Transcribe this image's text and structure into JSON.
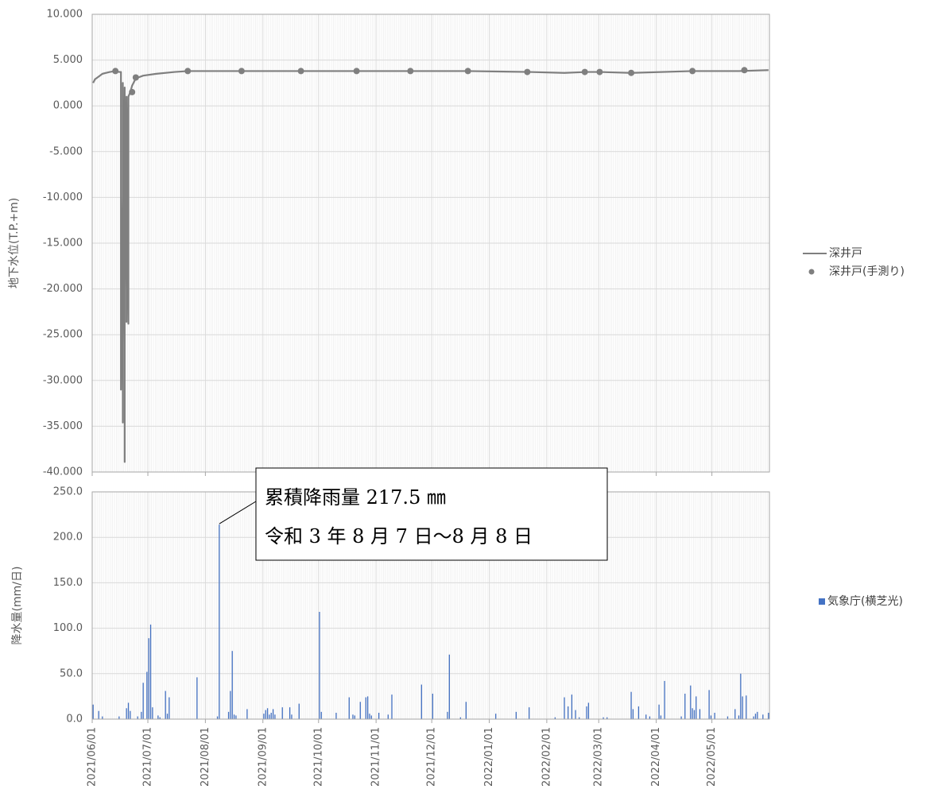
{
  "chart_data": [
    {
      "id": "groundwater",
      "type": "line",
      "ylabel": "地下水位(T.P.+m)",
      "ylim": [
        -40,
        10
      ],
      "yticks": [
        "10.000",
        "5.000",
        "0.000",
        "-5.000",
        "-10.000",
        "-15.000",
        "-20.000",
        "-25.000",
        "-30.000",
        "-35.000",
        "-40.000"
      ],
      "xlim": [
        "2021-06-01",
        "2022-05-31"
      ],
      "series": [
        {
          "name": "深井戸",
          "style": "line",
          "color": "#7f7f7f",
          "points": [
            [
              "2021-06-01",
              2.5
            ],
            [
              "2021-06-02",
              2.9
            ],
            [
              "2021-06-04",
              3.2
            ],
            [
              "2021-06-06",
              3.5
            ],
            [
              "2021-06-08",
              3.6
            ],
            [
              "2021-06-10",
              3.7
            ],
            [
              "2021-06-13",
              3.8
            ],
            [
              "2021-06-15",
              3.7
            ],
            [
              "2021-06-16",
              3.7
            ],
            [
              "2021-06-16",
              -4.0
            ],
            [
              "2021-06-16",
              -31.0
            ],
            [
              "2021-06-17",
              -10.0
            ],
            [
              "2021-06-17",
              -34.6
            ],
            [
              "2021-06-17",
              2.5
            ],
            [
              "2021-06-17",
              -26.0
            ],
            [
              "2021-06-18",
              2.0
            ],
            [
              "2021-06-18",
              -38.9
            ],
            [
              "2021-06-18",
              1.5
            ],
            [
              "2021-06-19",
              -20.0
            ],
            [
              "2021-06-19",
              1.0
            ],
            [
              "2021-06-19",
              -23.6
            ],
            [
              "2021-06-20",
              1.0
            ],
            [
              "2021-06-20",
              -23.8
            ],
            [
              "2021-06-20",
              1.0
            ],
            [
              "2021-06-21",
              1.5
            ],
            [
              "2021-06-22",
              2.2
            ],
            [
              "2021-06-24",
              3.0
            ],
            [
              "2021-06-28",
              3.3
            ],
            [
              "2021-07-05",
              3.5
            ],
            [
              "2021-07-15",
              3.7
            ],
            [
              "2021-07-22",
              3.8
            ],
            [
              "2021-08-15",
              3.8
            ],
            [
              "2021-09-20",
              3.8
            ],
            [
              "2021-10-20",
              3.8
            ],
            [
              "2021-11-20",
              3.8
            ],
            [
              "2021-12-20",
              3.8
            ],
            [
              "2022-01-22",
              3.7
            ],
            [
              "2022-02-10",
              3.6
            ],
            [
              "2022-02-22",
              3.7
            ],
            [
              "2022-03-01",
              3.7
            ],
            [
              "2022-03-18",
              3.6
            ],
            [
              "2022-04-20",
              3.8
            ],
            [
              "2022-05-15",
              3.8
            ],
            [
              "2022-05-31",
              3.9
            ]
          ]
        },
        {
          "name": "深井戸(手測り)",
          "style": "marker",
          "color": "#7f7f7f",
          "points": [
            [
              "2021-06-13",
              3.8
            ],
            [
              "2021-06-22",
              1.5
            ],
            [
              "2021-06-24",
              3.1
            ],
            [
              "2021-07-22",
              3.8
            ],
            [
              "2021-08-20",
              3.8
            ],
            [
              "2021-09-21",
              3.8
            ],
            [
              "2021-10-21",
              3.8
            ],
            [
              "2021-11-19",
              3.8
            ],
            [
              "2021-12-20",
              3.8
            ],
            [
              "2022-01-21",
              3.7
            ],
            [
              "2022-02-21",
              3.7
            ],
            [
              "2022-03-01",
              3.7
            ],
            [
              "2022-03-18",
              3.6
            ],
            [
              "2022-04-20",
              3.8
            ],
            [
              "2022-05-18",
              3.9
            ]
          ]
        }
      ]
    },
    {
      "id": "rainfall",
      "type": "bar",
      "ylabel": "降水量(mm/日)",
      "ylim": [
        0,
        250
      ],
      "yticks": [
        "250.0",
        "200.0",
        "150.0",
        "100.0",
        "50.0",
        "0.0"
      ],
      "xlim": [
        "2021-06-01",
        "2022-05-31"
      ],
      "xticks": [
        "2021/06/01",
        "2021/07/01",
        "2021/08/01",
        "2021/09/01",
        "2021/10/01",
        "2021/11/01",
        "2021/12/01",
        "2022/01/01",
        "2022/02/01",
        "2022/03/01",
        "2022/04/01",
        "2022/05/01"
      ],
      "series": [
        {
          "name": "気象庁(横芝光)",
          "color": "#4472c4",
          "bars": [
            [
              "2021-06-01",
              16
            ],
            [
              "2021-06-04",
              9
            ],
            [
              "2021-06-06",
              3
            ],
            [
              "2021-06-15",
              3
            ],
            [
              "2021-06-19",
              12
            ],
            [
              "2021-06-20",
              18
            ],
            [
              "2021-06-21",
              9
            ],
            [
              "2021-06-25",
              3
            ],
            [
              "2021-06-27",
              8
            ],
            [
              "2021-06-28",
              40
            ],
            [
              "2021-06-30",
              52
            ],
            [
              "2021-07-01",
              89
            ],
            [
              "2021-07-02",
              104
            ],
            [
              "2021-07-03",
              13
            ],
            [
              "2021-07-06",
              4
            ],
            [
              "2021-07-07",
              2
            ],
            [
              "2021-07-10",
              31
            ],
            [
              "2021-07-11",
              6
            ],
            [
              "2021-07-12",
              24
            ],
            [
              "2021-07-27",
              46
            ],
            [
              "2021-08-07",
              3
            ],
            [
              "2021-08-08",
              214
            ],
            [
              "2021-08-13",
              8
            ],
            [
              "2021-08-14",
              31
            ],
            [
              "2021-08-15",
              75
            ],
            [
              "2021-08-16",
              5
            ],
            [
              "2021-08-17",
              4
            ],
            [
              "2021-08-23",
              11
            ],
            [
              "2021-09-01",
              6
            ],
            [
              "2021-09-02",
              10
            ],
            [
              "2021-09-03",
              12
            ],
            [
              "2021-09-04",
              5
            ],
            [
              "2021-09-05",
              7
            ],
            [
              "2021-09-06",
              11
            ],
            [
              "2021-09-07",
              5
            ],
            [
              "2021-09-11",
              13
            ],
            [
              "2021-09-15",
              13
            ],
            [
              "2021-09-16",
              5
            ],
            [
              "2021-09-20",
              17
            ],
            [
              "2021-10-01",
              118
            ],
            [
              "2021-10-02",
              8
            ],
            [
              "2021-10-10",
              7
            ],
            [
              "2021-10-17",
              24
            ],
            [
              "2021-10-19",
              5
            ],
            [
              "2021-10-20",
              4
            ],
            [
              "2021-10-23",
              19
            ],
            [
              "2021-10-26",
              24
            ],
            [
              "2021-10-27",
              25
            ],
            [
              "2021-10-28",
              6
            ],
            [
              "2021-10-29",
              4
            ],
            [
              "2021-11-02",
              7
            ],
            [
              "2021-11-07",
              5
            ],
            [
              "2021-11-09",
              27
            ],
            [
              "2021-11-25",
              38
            ],
            [
              "2021-12-01",
              28
            ],
            [
              "2021-12-09",
              8
            ],
            [
              "2021-12-10",
              71
            ],
            [
              "2021-12-16",
              2
            ],
            [
              "2021-12-19",
              19
            ],
            [
              "2022-01-04",
              6
            ],
            [
              "2022-01-15",
              8
            ],
            [
              "2022-01-22",
              13
            ],
            [
              "2022-02-05",
              2
            ],
            [
              "2022-02-10",
              24
            ],
            [
              "2022-02-12",
              14
            ],
            [
              "2022-02-14",
              27
            ],
            [
              "2022-02-16",
              10
            ],
            [
              "2022-02-18",
              2
            ],
            [
              "2022-02-22",
              14
            ],
            [
              "2022-02-23",
              18
            ],
            [
              "2022-03-03",
              2
            ],
            [
              "2022-03-05",
              2
            ],
            [
              "2022-03-18",
              30
            ],
            [
              "2022-03-19",
              11
            ],
            [
              "2022-03-22",
              14
            ],
            [
              "2022-03-26",
              5
            ],
            [
              "2022-03-28",
              3
            ],
            [
              "2022-04-02",
              16
            ],
            [
              "2022-04-03",
              4
            ],
            [
              "2022-04-05",
              42
            ],
            [
              "2022-04-14",
              3
            ],
            [
              "2022-04-16",
              28
            ],
            [
              "2022-04-19",
              37
            ],
            [
              "2022-04-20",
              12
            ],
            [
              "2022-04-21",
              10
            ],
            [
              "2022-04-22",
              25
            ],
            [
              "2022-04-24",
              11
            ],
            [
              "2022-04-29",
              32
            ],
            [
              "2022-04-30",
              4
            ],
            [
              "2022-05-02",
              7
            ],
            [
              "2022-05-09",
              3
            ],
            [
              "2022-05-13",
              11
            ],
            [
              "2022-05-15",
              4
            ],
            [
              "2022-05-16",
              50
            ],
            [
              "2022-05-17",
              25
            ],
            [
              "2022-05-19",
              26
            ],
            [
              "2022-05-23",
              3
            ],
            [
              "2022-05-24",
              6
            ],
            [
              "2022-05-25",
              8
            ],
            [
              "2022-05-28",
              5
            ],
            [
              "2022-05-31",
              7
            ]
          ]
        }
      ]
    }
  ],
  "annotation": {
    "line1": "累積降雨量 217.5 ㎜",
    "line2": "令和 3 年 8 月 7 日～8 月 8 日",
    "target_date": "2021-08-08",
    "target_value": 214
  },
  "colors": {
    "plot_border": "#a6a6a6",
    "gridline": "#d9d9d9",
    "minor_gridline": "#e9e9e9",
    "tick_text": "#595959"
  }
}
